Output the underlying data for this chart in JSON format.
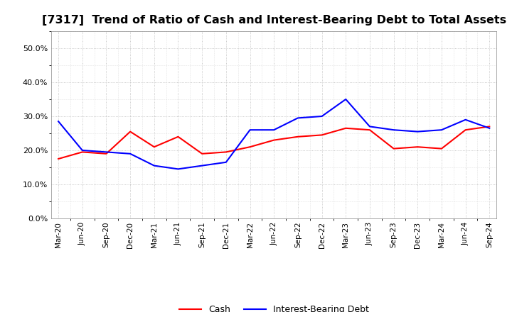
{
  "title": "[7317]  Trend of Ratio of Cash and Interest-Bearing Debt to Total Assets",
  "x_labels": [
    "Mar-20",
    "Jun-20",
    "Sep-20",
    "Dec-20",
    "Mar-21",
    "Jun-21",
    "Sep-21",
    "Dec-21",
    "Mar-22",
    "Jun-22",
    "Sep-22",
    "Dec-22",
    "Mar-23",
    "Jun-23",
    "Sep-23",
    "Dec-23",
    "Mar-24",
    "Jun-24",
    "Sep-24"
  ],
  "cash": [
    17.5,
    19.5,
    19.0,
    25.5,
    21.0,
    24.0,
    19.0,
    19.5,
    21.0,
    23.0,
    24.0,
    24.5,
    26.5,
    26.0,
    20.5,
    21.0,
    20.5,
    26.0,
    27.0
  ],
  "interest_bearing_debt": [
    28.5,
    20.0,
    19.5,
    19.0,
    15.5,
    14.5,
    15.5,
    16.5,
    26.0,
    26.0,
    29.5,
    30.0,
    35.0,
    27.0,
    26.0,
    25.5,
    26.0,
    29.0,
    26.5
  ],
  "cash_color": "#ff0000",
  "ibd_color": "#0000ff",
  "ylim": [
    0,
    55
  ],
  "yticks": [
    0.0,
    10.0,
    20.0,
    30.0,
    40.0,
    50.0
  ],
  "background_color": "#ffffff",
  "plot_bg_color": "#ffffff",
  "grid_color": "#aaaaaa",
  "title_fontsize": 11.5,
  "legend_labels": [
    "Cash",
    "Interest-Bearing Debt"
  ]
}
